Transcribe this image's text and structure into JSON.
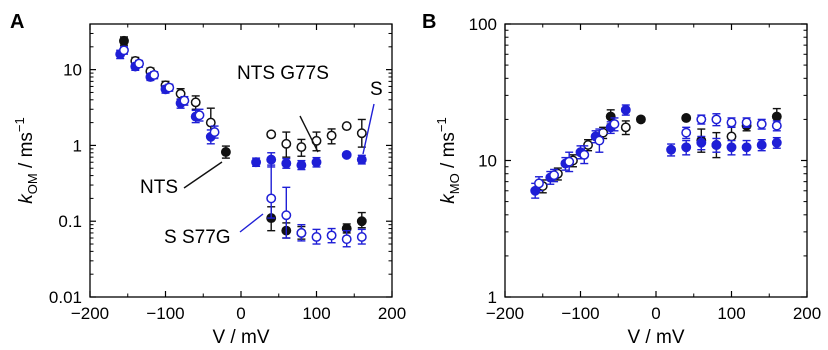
{
  "chart_data": [
    {
      "panel": "A",
      "type": "scatter",
      "ylabel": {
        "main": "k",
        "sub": "OM",
        "unit": "/ ms",
        "exp": "−1"
      },
      "xlabel": "V / mV",
      "x_scale": "linear",
      "y_scale": "log",
      "xlim": [
        -200,
        200
      ],
      "ylim": [
        0.01,
        40
      ],
      "x_ticks": [
        {
          "v": -200,
          "label": "−200"
        },
        {
          "v": -100,
          "label": "−100"
        },
        {
          "v": 0,
          "label": "0"
        },
        {
          "v": 100,
          "label": "100"
        },
        {
          "v": 200,
          "label": "200"
        }
      ],
      "y_ticks": [
        {
          "v": 0.01,
          "label": "0.01"
        },
        {
          "v": 0.1,
          "label": "0.1"
        },
        {
          "v": 1,
          "label": "1"
        },
        {
          "v": 10,
          "label": "10"
        }
      ],
      "grid": false,
      "colors": {
        "black": "#111111",
        "blue": "#1f1fd6"
      },
      "series": [
        {
          "color": "black",
          "filled": true,
          "points": [
            {
              "x": -155,
              "y": 24,
              "lo": 21,
              "hi": 27
            },
            {
              "x": -20,
              "y": 0.82,
              "lo": 0.68,
              "hi": 0.98
            },
            {
              "x": 40,
              "y": 0.11,
              "lo": 0.075,
              "hi": 0.155
            },
            {
              "x": 60,
              "y": 0.075,
              "lo": 0.06,
              "hi": 0.095
            },
            {
              "x": 80,
              "y": 0.07,
              "lo": 0.058,
              "hi": 0.085
            },
            {
              "x": 140,
              "y": 0.08,
              "lo": 0.07,
              "hi": 0.092
            },
            {
              "x": 160,
              "y": 0.1,
              "lo": 0.082,
              "hi": 0.13
            }
          ]
        },
        {
          "color": "black",
          "filled": false,
          "points": [
            {
              "x": -140,
              "y": 13,
              "lo": 11.5,
              "hi": 14.5
            },
            {
              "x": -120,
              "y": 9.5,
              "lo": 8.5,
              "hi": 10.5
            },
            {
              "x": -100,
              "y": 6.2,
              "lo": 5.5,
              "hi": 7
            },
            {
              "x": -80,
              "y": 4.8,
              "lo": 4,
              "hi": 5.6
            },
            {
              "x": -60,
              "y": 3.7,
              "lo": 3,
              "hi": 4.5
            },
            {
              "x": -40,
              "y": 2,
              "lo": 1.3,
              "hi": 3.1
            },
            {
              "x": 40,
              "y": 1.4,
              "lo": 1.3,
              "hi": 1.5
            },
            {
              "x": 60,
              "y": 1.05,
              "lo": 0.7,
              "hi": 1.5
            },
            {
              "x": 80,
              "y": 0.95,
              "lo": 0.72,
              "hi": 1.2
            },
            {
              "x": 100,
              "y": 1.15,
              "lo": 0.85,
              "hi": 1.5
            },
            {
              "x": 120,
              "y": 1.35,
              "lo": 1.05,
              "hi": 1.65
            },
            {
              "x": 140,
              "y": 1.8,
              "lo": 1.7,
              "hi": 1.9
            },
            {
              "x": 160,
              "y": 1.45,
              "lo": 0.95,
              "hi": 2.2
            }
          ]
        },
        {
          "color": "blue",
          "filled": true,
          "points": [
            {
              "x": -160,
              "y": 16,
              "lo": 14,
              "hi": 18
            },
            {
              "x": -140,
              "y": 11,
              "lo": 9.8,
              "hi": 12.2
            },
            {
              "x": -120,
              "y": 8,
              "lo": 7.2,
              "hi": 8.8
            },
            {
              "x": -100,
              "y": 5.5,
              "lo": 4.9,
              "hi": 6.1
            },
            {
              "x": -80,
              "y": 3.6,
              "lo": 3.1,
              "hi": 4.1
            },
            {
              "x": -60,
              "y": 2.4,
              "lo": 2,
              "hi": 2.9
            },
            {
              "x": -40,
              "y": 1.3,
              "lo": 1.05,
              "hi": 1.6
            },
            {
              "x": 20,
              "y": 0.6,
              "lo": 0.53,
              "hi": 0.68
            },
            {
              "x": 40,
              "y": 0.65,
              "lo": 0.52,
              "hi": 0.8
            },
            {
              "x": 60,
              "y": 0.58,
              "lo": 0.5,
              "hi": 0.67
            },
            {
              "x": 80,
              "y": 0.55,
              "lo": 0.48,
              "hi": 0.63
            },
            {
              "x": 100,
              "y": 0.6,
              "lo": 0.52,
              "hi": 0.69
            },
            {
              "x": 140,
              "y": 0.75,
              "lo": 0.72,
              "hi": 0.78
            },
            {
              "x": 160,
              "y": 0.65,
              "lo": 0.57,
              "hi": 0.74
            }
          ]
        },
        {
          "color": "blue",
          "filled": false,
          "points": [
            {
              "x": -155,
              "y": 18,
              "lo": 16,
              "hi": 20
            },
            {
              "x": -135,
              "y": 12,
              "lo": 10.8,
              "hi": 13.2
            },
            {
              "x": -115,
              "y": 8.5,
              "lo": 7.6,
              "hi": 9.4
            },
            {
              "x": -95,
              "y": 5.8,
              "lo": 5.2,
              "hi": 6.4
            },
            {
              "x": -75,
              "y": 3.9,
              "lo": 3.4,
              "hi": 4.4
            },
            {
              "x": -55,
              "y": 2.5,
              "lo": 2.1,
              "hi": 3
            },
            {
              "x": -35,
              "y": 1.5,
              "lo": 1.25,
              "hi": 1.8
            },
            {
              "x": 40,
              "y": 0.2,
              "lo": 0.11,
              "hi": 0.55
            },
            {
              "x": 60,
              "y": 0.12,
              "lo": 0.06,
              "hi": 0.28
            },
            {
              "x": 80,
              "y": 0.07,
              "lo": 0.055,
              "hi": 0.09
            },
            {
              "x": 100,
              "y": 0.062,
              "lo": 0.05,
              "hi": 0.078
            },
            {
              "x": 120,
              "y": 0.065,
              "lo": 0.052,
              "hi": 0.08
            },
            {
              "x": 140,
              "y": 0.058,
              "lo": 0.046,
              "hi": 0.075
            },
            {
              "x": 160,
              "y": 0.062,
              "lo": 0.05,
              "hi": 0.078
            }
          ]
        }
      ],
      "annotations": [
        {
          "text": "NTS G77S",
          "anchor": {
            "x": 85,
            "y": 0.9
          }
        },
        {
          "text": "S",
          "anchor": {
            "x": 162,
            "y": 0.66
          }
        },
        {
          "text": "NTS",
          "anchor": {
            "x": -20,
            "y": 0.82
          }
        },
        {
          "text": "S S77G",
          "anchor": {
            "x": 40,
            "y": 0.2
          }
        }
      ]
    },
    {
      "panel": "B",
      "type": "scatter",
      "ylabel": {
        "main": "k",
        "sub": "MO",
        "unit": "/ ms",
        "exp": "−1"
      },
      "xlabel": "V / mV",
      "x_scale": "linear",
      "y_scale": "log",
      "xlim": [
        -200,
        200
      ],
      "ylim": [
        1,
        100
      ],
      "x_ticks": [
        {
          "v": -200,
          "label": "−200"
        },
        {
          "v": -100,
          "label": "−100"
        },
        {
          "v": 0,
          "label": "0"
        },
        {
          "v": 100,
          "label": "100"
        },
        {
          "v": 200,
          "label": "200"
        }
      ],
      "y_ticks": [
        {
          "v": 1,
          "label": "1"
        },
        {
          "v": 10,
          "label": "10"
        },
        {
          "v": 100,
          "label": "100"
        }
      ],
      "grid": false,
      "colors": {
        "black": "#111111",
        "blue": "#1f1fd6"
      },
      "series": [
        {
          "color": "black",
          "filled": true,
          "points": [
            {
              "x": -60,
              "y": 21,
              "lo": 18.5,
              "hi": 23.5
            },
            {
              "x": -20,
              "y": 20,
              "lo": 19.2,
              "hi": 20.8
            },
            {
              "x": 40,
              "y": 20.5,
              "lo": 19.7,
              "hi": 21.3
            },
            {
              "x": 60,
              "y": 14,
              "lo": 11.5,
              "hi": 17
            },
            {
              "x": 120,
              "y": 18,
              "lo": 16.5,
              "hi": 19.5
            },
            {
              "x": 160,
              "y": 21,
              "lo": 18.5,
              "hi": 24
            }
          ]
        },
        {
          "color": "black",
          "filled": false,
          "points": [
            {
              "x": -150,
              "y": 6.5,
              "lo": 5.8,
              "hi": 7.2
            },
            {
              "x": -130,
              "y": 8,
              "lo": 7.2,
              "hi": 8.8
            },
            {
              "x": -110,
              "y": 10,
              "lo": 9,
              "hi": 11
            },
            {
              "x": -90,
              "y": 13,
              "lo": 11.8,
              "hi": 14.2
            },
            {
              "x": -70,
              "y": 16,
              "lo": 14.5,
              "hi": 17.5
            },
            {
              "x": -40,
              "y": 17.5,
              "lo": 15.5,
              "hi": 19.5
            },
            {
              "x": 80,
              "y": 13,
              "lo": 10.5,
              "hi": 16
            },
            {
              "x": 100,
              "y": 15,
              "lo": 12.5,
              "hi": 18
            }
          ]
        },
        {
          "color": "blue",
          "filled": true,
          "points": [
            {
              "x": -160,
              "y": 6,
              "lo": 5.3,
              "hi": 6.8
            },
            {
              "x": -140,
              "y": 7.5,
              "lo": 6.7,
              "hi": 8.3
            },
            {
              "x": -120,
              "y": 9.5,
              "lo": 8.5,
              "hi": 10.5
            },
            {
              "x": -100,
              "y": 11.5,
              "lo": 10.3,
              "hi": 12.8
            },
            {
              "x": -80,
              "y": 15,
              "lo": 13.5,
              "hi": 16.5
            },
            {
              "x": -60,
              "y": 17.5,
              "lo": 15.8,
              "hi": 19.2
            },
            {
              "x": -40,
              "y": 23.5,
              "lo": 21.5,
              "hi": 25.5
            },
            {
              "x": 20,
              "y": 12,
              "lo": 10.8,
              "hi": 13.2
            },
            {
              "x": 40,
              "y": 12.5,
              "lo": 11,
              "hi": 14
            },
            {
              "x": 60,
              "y": 13.5,
              "lo": 12,
              "hi": 15
            },
            {
              "x": 80,
              "y": 13,
              "lo": 11.5,
              "hi": 14.5
            },
            {
              "x": 100,
              "y": 12.5,
              "lo": 11,
              "hi": 14
            },
            {
              "x": 120,
              "y": 12.5,
              "lo": 11,
              "hi": 14
            },
            {
              "x": 140,
              "y": 13,
              "lo": 11.8,
              "hi": 14.2
            },
            {
              "x": 160,
              "y": 13.5,
              "lo": 12.3,
              "hi": 14.7
            }
          ]
        },
        {
          "color": "blue",
          "filled": false,
          "points": [
            {
              "x": -155,
              "y": 6.8,
              "lo": 6,
              "hi": 7.6
            },
            {
              "x": -135,
              "y": 7.8,
              "lo": 7,
              "hi": 8.6
            },
            {
              "x": -115,
              "y": 9.8,
              "lo": 8.3,
              "hi": 11.5
            },
            {
              "x": -95,
              "y": 11,
              "lo": 9.5,
              "hi": 12.8
            },
            {
              "x": -75,
              "y": 14,
              "lo": 11.5,
              "hi": 17
            },
            {
              "x": -55,
              "y": 18.5,
              "lo": 16.5,
              "hi": 20.5
            },
            {
              "x": 40,
              "y": 16,
              "lo": 14.5,
              "hi": 17.5
            },
            {
              "x": 60,
              "y": 20,
              "lo": 18.5,
              "hi": 21.5
            },
            {
              "x": 80,
              "y": 20,
              "lo": 18,
              "hi": 22
            },
            {
              "x": 100,
              "y": 19,
              "lo": 17.5,
              "hi": 20.5
            },
            {
              "x": 120,
              "y": 19,
              "lo": 17.5,
              "hi": 20.5
            },
            {
              "x": 140,
              "y": 18.5,
              "lo": 17,
              "hi": 20
            },
            {
              "x": 160,
              "y": 18,
              "lo": 16.5,
              "hi": 19.5
            }
          ]
        }
      ],
      "annotations": []
    }
  ]
}
